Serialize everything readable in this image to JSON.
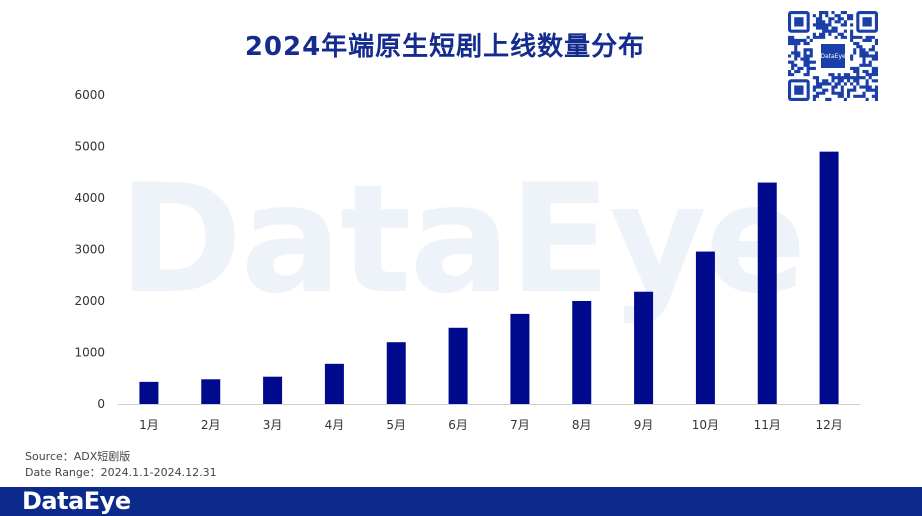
{
  "header": {
    "title": "2024年端原生短剧上线数量分布"
  },
  "watermark": {
    "text": "DataEye"
  },
  "qr": {
    "logo_text": "DataEye"
  },
  "source": {
    "line1": "Source：ADX短剧版",
    "line2": "Date Range：2024.1.1-2024.12.31"
  },
  "footer": {
    "logo_text": "DataEye"
  },
  "colors": {
    "bar": "#000a8c",
    "title": "#142c8e",
    "footer": "#0c2a8c",
    "watermark": "#eef3fa"
  },
  "chart_data": {
    "type": "bar",
    "title": "2024年端原生短剧上线数量分布",
    "categories": [
      "1月",
      "2月",
      "3月",
      "4月",
      "5月",
      "6月",
      "7月",
      "8月",
      "9月",
      "10月",
      "11月",
      "12月"
    ],
    "values": [
      430,
      480,
      530,
      780,
      1200,
      1480,
      1750,
      2000,
      2180,
      2960,
      4300,
      4900
    ],
    "yticks": [
      0,
      1000,
      2000,
      3000,
      4000,
      5000,
      6000
    ],
    "ylim": [
      0,
      6000
    ],
    "grid": false,
    "legend": "none",
    "xlabel": "",
    "ylabel": ""
  }
}
